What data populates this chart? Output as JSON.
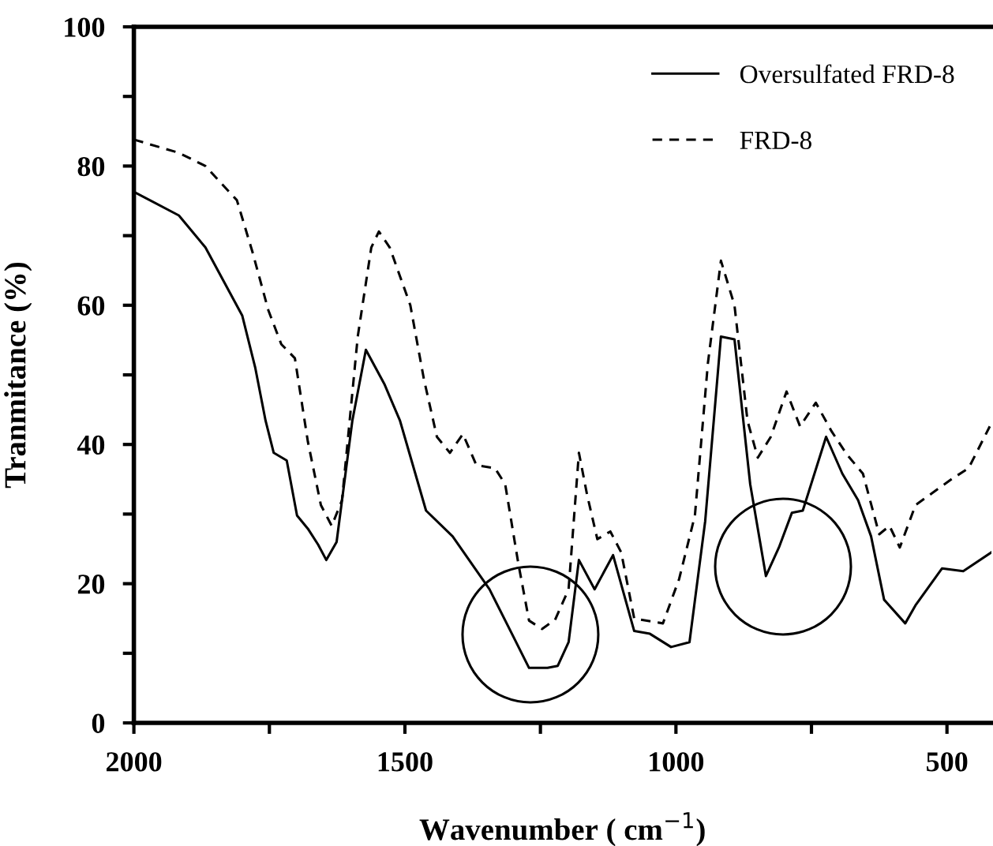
{
  "chart_data": {
    "type": "line",
    "xlabel": "Wavenumber ( cm$^{−1}$)",
    "ylabel": "Tranmitance (%)",
    "xlim": [
      2000,
      418
    ],
    "ylim": [
      0,
      100
    ],
    "xticks": [
      2000,
      {
        "value": 1750,
        "label": null
      },
      1500,
      {
        "value": 1250,
        "label": null
      },
      1000,
      {
        "value": 750,
        "label": null
      },
      500
    ],
    "yticks": [
      0,
      {
        "value": 10,
        "label": null
      },
      20,
      {
        "value": 30,
        "label": null
      },
      40,
      {
        "value": 50,
        "label": null
      },
      60,
      {
        "value": 70,
        "label": null
      },
      80,
      {
        "value": 90,
        "label": null
      },
      100
    ],
    "grid": false,
    "legend": "top right",
    "series": [
      {
        "name": "Oversulfated FRD-8",
        "color": "#000000",
        "line_style": "solid",
        "x": [
          2000,
          1917,
          1868,
          1800,
          1776,
          1757,
          1742,
          1718,
          1699,
          1679,
          1660,
          1645,
          1626,
          1597,
          1572,
          1538,
          1509,
          1461,
          1412,
          1344,
          1300,
          1271,
          1237,
          1218,
          1198,
          1179,
          1150,
          1116,
          1077,
          1048,
          1009,
          975,
          946,
          917,
          892,
          863,
          834,
          810,
          786,
          766,
          723,
          693,
          664,
          640,
          616,
          577,
          558,
          509,
          470,
          418
        ],
        "values": [
          76.3,
          72.9,
          68.3,
          58.5,
          51,
          43.4,
          38.8,
          37.7,
          29.8,
          27.9,
          25.6,
          23.4,
          26,
          43.4,
          53.6,
          48.7,
          43.4,
          30.5,
          26.8,
          19.2,
          12.4,
          7.9,
          7.9,
          8.2,
          11.6,
          23.4,
          19.2,
          24.1,
          13.2,
          12.8,
          10.9,
          11.6,
          29,
          55.5,
          55.1,
          34.3,
          21.1,
          25.2,
          30.2,
          30.5,
          41.1,
          35.8,
          32,
          26.8,
          17.7,
          14.3,
          16.9,
          22.2,
          21.8,
          24.5
        ]
      },
      {
        "name": "FRD-8",
        "color": "#000000",
        "line_style": "dashed",
        "x": [
          2000,
          1917,
          1868,
          1810,
          1781,
          1752,
          1728,
          1703,
          1679,
          1655,
          1635,
          1616,
          1587,
          1562,
          1548,
          1528,
          1490,
          1465,
          1441,
          1417,
          1393,
          1368,
          1334,
          1315,
          1291,
          1271,
          1247,
          1223,
          1198,
          1179,
          1164,
          1145,
          1121,
          1101,
          1077,
          1024,
          994,
          965,
          941,
          917,
          892,
          868,
          849,
          825,
          796,
          771,
          742,
          713,
          684,
          655,
          625,
          606,
          587,
          558,
          490,
          460,
          421
        ],
        "values": [
          83.8,
          81.9,
          80,
          75.1,
          67.6,
          59.3,
          54.4,
          52.4,
          40.4,
          31.3,
          28.3,
          32,
          55.5,
          68.3,
          70.6,
          68.3,
          60,
          49.4,
          41.1,
          38.8,
          41.5,
          37,
          36.6,
          34.3,
          23,
          14.7,
          13.5,
          14.8,
          19.2,
          38.8,
          32.8,
          26.4,
          27.5,
          24.5,
          15,
          14.3,
          20.7,
          29.8,
          51.7,
          66.4,
          60,
          43.4,
          38.1,
          41.1,
          47.6,
          42.6,
          46,
          41.9,
          38.5,
          35.8,
          27.1,
          28.3,
          25.2,
          31.3,
          35.1,
          36.6,
          42.6
        ]
      }
    ]
  }
}
